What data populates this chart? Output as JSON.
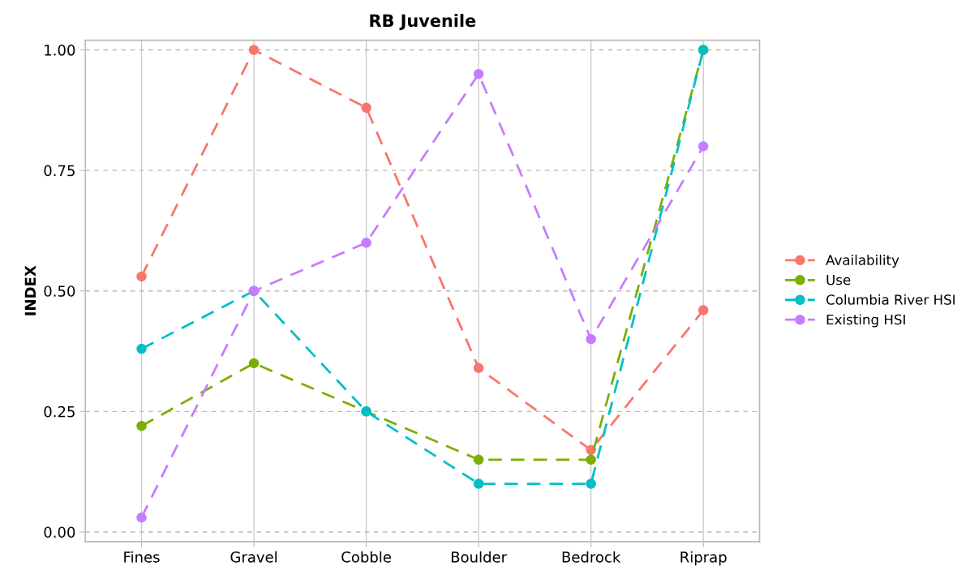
{
  "chart_data": {
    "type": "line",
    "title": "RB Juvenile",
    "ylabel": "INDEX",
    "categories": [
      "Fines",
      "Gravel",
      "Cobble",
      "Boulder",
      "Bedrock",
      "Riprap"
    ],
    "series": [
      {
        "name": "Availability",
        "color": "#f8766d",
        "values": [
          0.53,
          1.0,
          0.88,
          0.34,
          0.17,
          0.46
        ]
      },
      {
        "name": "Use",
        "color": "#7cae00",
        "values": [
          0.22,
          0.35,
          0.25,
          0.15,
          0.15,
          1.0
        ]
      },
      {
        "name": "Columbia River HSI",
        "color": "#00bfc4",
        "values": [
          0.38,
          0.5,
          0.25,
          0.1,
          0.1,
          1.0
        ]
      },
      {
        "name": "Existing HSI",
        "color": "#c77cff",
        "values": [
          0.03,
          0.5,
          0.6,
          0.95,
          0.4,
          0.8
        ]
      }
    ],
    "ylim": [
      -0.02,
      1.02
    ],
    "yticks": [
      {
        "value": 0,
        "label": "0.00"
      },
      {
        "value": 0.25,
        "label": "0.25"
      },
      {
        "value": 0.5,
        "label": "0.50"
      },
      {
        "value": 0.75,
        "label": "0.75"
      },
      {
        "value": 1,
        "label": "1.00"
      }
    ],
    "grid": true,
    "legend": "right",
    "marker": "circle",
    "line_style": "dashed"
  }
}
